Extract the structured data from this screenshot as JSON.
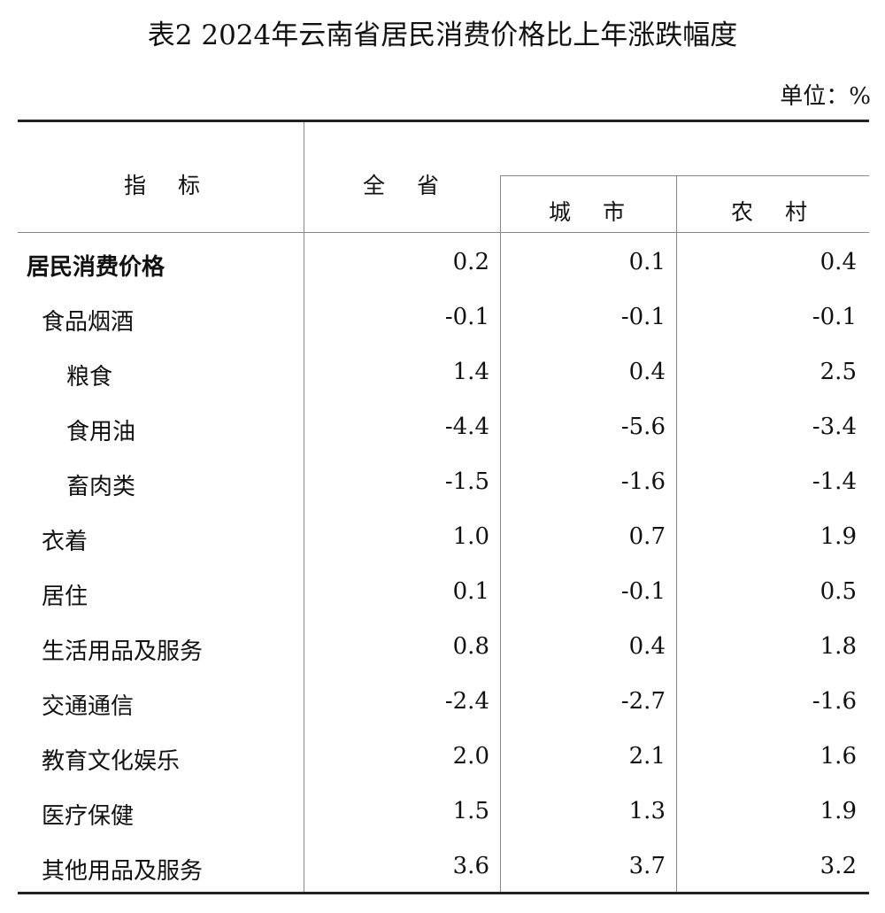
{
  "title": "表2  2024年云南省居民消费价格比上年涨跌幅度",
  "unit": "单位：%",
  "headers": {
    "indicator": "指 标",
    "province": "全 省",
    "urban": "城 市",
    "rural": "农 村"
  },
  "rows": [
    {
      "label": "居民消费价格",
      "province": "0.2",
      "urban": "0.1",
      "rural": "0.4"
    },
    {
      "label": "食品烟酒",
      "province": "-0.1",
      "urban": "-0.1",
      "rural": "-0.1"
    },
    {
      "label": "粮食",
      "province": "1.4",
      "urban": "0.4",
      "rural": "2.5"
    },
    {
      "label": "食用油",
      "province": "-4.4",
      "urban": "-5.6",
      "rural": "-3.4"
    },
    {
      "label": "畜肉类",
      "province": "-1.5",
      "urban": "-1.6",
      "rural": "-1.4"
    },
    {
      "label": "衣着",
      "province": "1.0",
      "urban": "0.7",
      "rural": "1.9"
    },
    {
      "label": "居住",
      "province": "0.1",
      "urban": "-0.1",
      "rural": "0.5"
    },
    {
      "label": "生活用品及服务",
      "province": "0.8",
      "urban": "0.4",
      "rural": "1.8"
    },
    {
      "label": "交通通信",
      "province": "-2.4",
      "urban": "-2.7",
      "rural": "-1.6"
    },
    {
      "label": "教育文化娱乐",
      "province": "2.0",
      "urban": "2.1",
      "rural": "1.6"
    },
    {
      "label": "医疗保健",
      "province": "1.5",
      "urban": "1.3",
      "rural": "1.9"
    },
    {
      "label": "其他用品及服务",
      "province": "3.6",
      "urban": "3.7",
      "rural": "3.2"
    }
  ]
}
